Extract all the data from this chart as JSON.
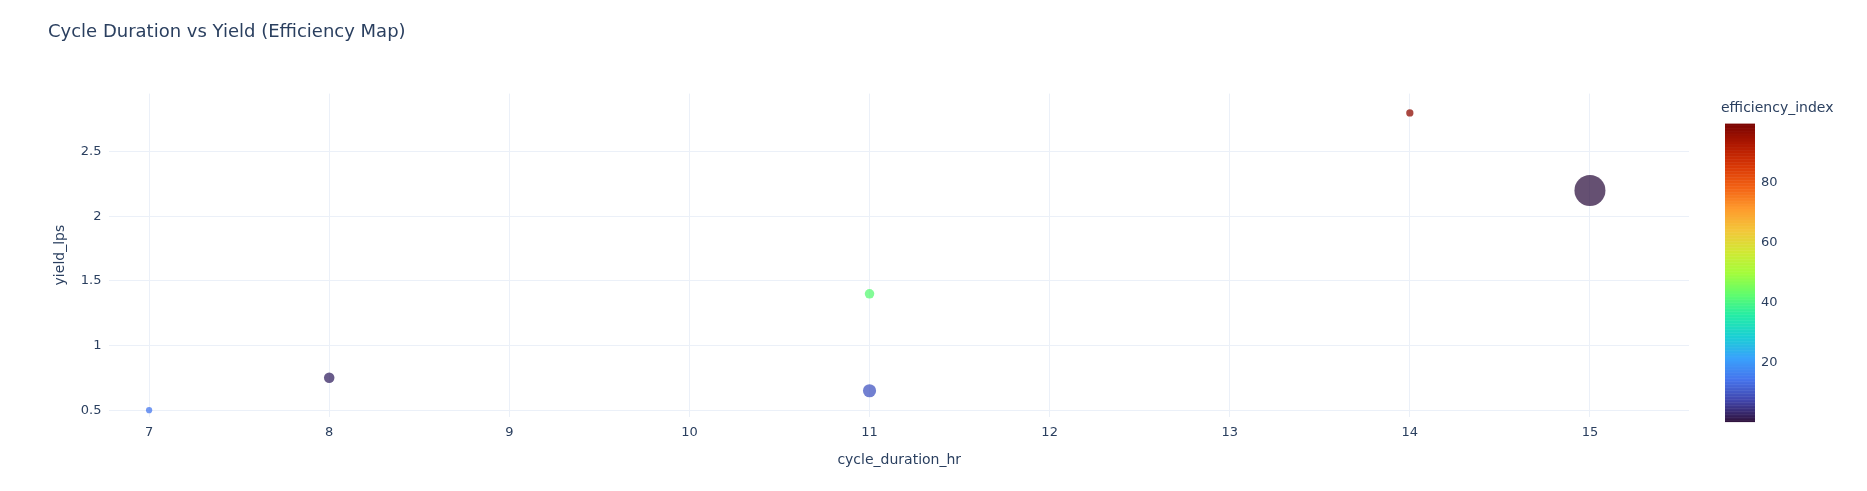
{
  "chart_data": {
    "type": "bubble",
    "title": "Cycle Duration vs Yield (Efficiency Map)",
    "xlabel": "cycle_duration_hr",
    "ylabel": "yield_lps",
    "clabel": "efficiency_index",
    "x": [
      7,
      8,
      11,
      11,
      14,
      15
    ],
    "values": [
      0.5,
      0.75,
      1.4,
      0.65,
      2.8,
      2.2
    ],
    "sizes": [
      0.04,
      0.115,
      0.094,
      0.18,
      0.055,
      1
    ],
    "cvalues": [
      15,
      3,
      42,
      10,
      97,
      1
    ],
    "clim": [
      0.5,
      99.5
    ],
    "cticks": [
      20,
      40,
      60,
      80
    ],
    "xlim": [
      6.78,
      15.55
    ],
    "xticks": [
      7,
      8,
      9,
      10,
      11,
      12,
      13,
      14,
      15
    ],
    "ylim": [
      0.45,
      2.95
    ],
    "yticks": [
      0.5,
      1,
      1.5,
      2,
      2.5
    ],
    "grid": true
  }
}
